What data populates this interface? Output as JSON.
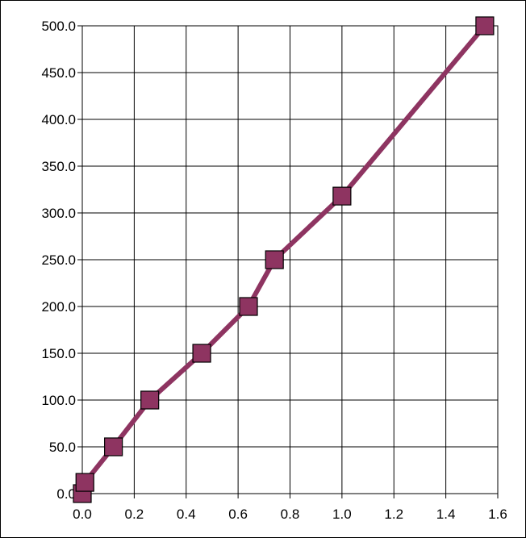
{
  "chart_data": {
    "type": "line",
    "title": "",
    "xlabel": "",
    "ylabel": "",
    "xlim": [
      0,
      1.6
    ],
    "ylim": [
      0,
      500
    ],
    "x_ticks": [
      0.0,
      0.2,
      0.4,
      0.6,
      0.8,
      1.0,
      1.2,
      1.4,
      1.6
    ],
    "x_tick_labels": [
      "0.0",
      "0.2",
      "0.4",
      "0.6",
      "0.8",
      "1.0",
      "1.2",
      "1.4",
      "1.6"
    ],
    "y_ticks": [
      0,
      50,
      100,
      150,
      200,
      250,
      300,
      350,
      400,
      450,
      500
    ],
    "y_tick_labels": [
      "0.0",
      "50.0",
      "100.0",
      "150.0",
      "200.0",
      "250.0",
      "300.0",
      "350.0",
      "400.0",
      "450.0",
      "500.0"
    ],
    "grid": true,
    "legend": "none",
    "series": [
      {
        "color": "#8E3461",
        "marker": "square",
        "x": [
          0.0,
          0.01,
          0.12,
          0.26,
          0.46,
          0.64,
          0.74,
          1.0,
          1.55
        ],
        "y": [
          0,
          12,
          50,
          100,
          150,
          200,
          250,
          318,
          500
        ]
      }
    ]
  }
}
